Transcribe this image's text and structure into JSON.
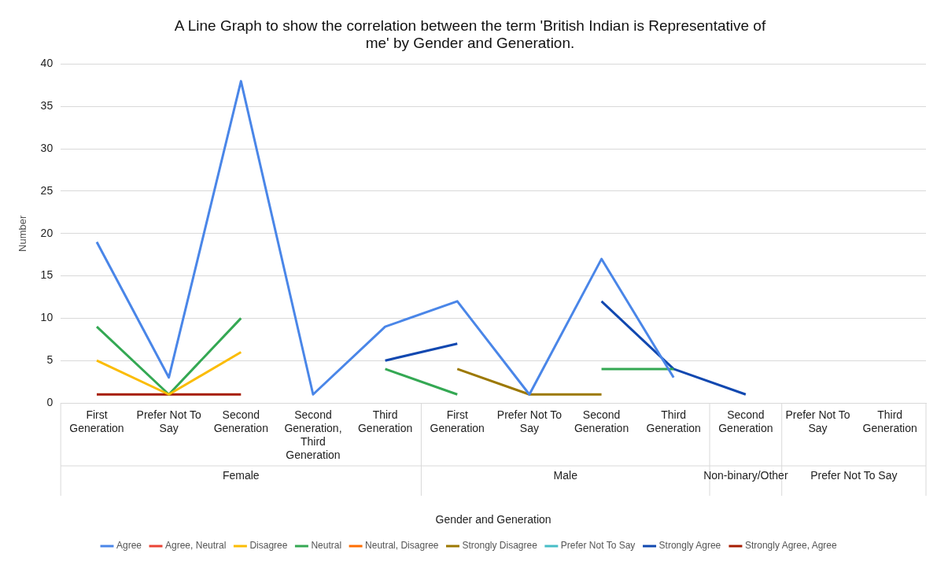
{
  "chart_data": {
    "type": "line",
    "title": "A Line Graph to show the correlation between the term 'British Indian is Representative of me' by Gender and Generation.",
    "xlabel": "Gender and Generation",
    "ylabel": "Number",
    "categories": [
      "First Generation",
      "Prefer Not To Say",
      "Second Generation",
      "Second Generation, Third Generation",
      "Third Generation",
      "First Generation",
      "Prefer Not To Say",
      "Second Generation",
      "Third Generation",
      "Second Generation",
      "Prefer Not To Say",
      "Third Generation"
    ],
    "annotations": [
      "Female",
      "Male",
      "Non-binary/Other",
      "Prefer Not To Say"
    ],
    "ylim": [
      0,
      40
    ],
    "yticks": [
      0,
      5,
      10,
      15,
      20,
      25,
      30,
      35,
      40
    ],
    "grid": "y",
    "legend": "bottom",
    "marker": "none",
    "line_style": "solid",
    "series": [
      {
        "name": "Agree",
        "color": "#4a86e8",
        "values": [
          19,
          3,
          38,
          1,
          9,
          12,
          1,
          17,
          3,
          null,
          null,
          null
        ]
      },
      {
        "name": "Agree, Neutral",
        "color": "#ea4335",
        "values": [
          null,
          null,
          null,
          null,
          null,
          null,
          null,
          null,
          null,
          null,
          null,
          null
        ]
      },
      {
        "name": "Disagree",
        "color": "#fbbc04",
        "values": [
          5,
          1,
          6,
          null,
          null,
          null,
          null,
          null,
          null,
          null,
          null,
          null
        ]
      },
      {
        "name": "Neutral",
        "color": "#34a853",
        "values": [
          9,
          1,
          10,
          null,
          4,
          1,
          null,
          4,
          4,
          null,
          null,
          null
        ]
      },
      {
        "name": "Neutral, Disagree",
        "color": "#ff6d01",
        "values": [
          null,
          null,
          null,
          null,
          null,
          null,
          null,
          null,
          null,
          null,
          null,
          null
        ]
      },
      {
        "name": "Strongly Disagree",
        "color": "#9c7800",
        "values": [
          null,
          null,
          null,
          null,
          null,
          4,
          1,
          1,
          null,
          null,
          null,
          null
        ]
      },
      {
        "name": "Prefer Not To Say",
        "color": "#46bdc6",
        "values": [
          null,
          null,
          null,
          null,
          null,
          null,
          null,
          null,
          null,
          null,
          null,
          null
        ]
      },
      {
        "name": "Strongly Agree",
        "color": "#1148b0",
        "values": [
          null,
          null,
          null,
          null,
          5,
          7,
          null,
          12,
          4,
          1,
          null,
          null
        ]
      },
      {
        "name": "Strongly Agree, Agree",
        "color": "#a61c00",
        "values": [
          1,
          1,
          1,
          null,
          null,
          null,
          null,
          null,
          null,
          null,
          null,
          null
        ]
      }
    ]
  }
}
